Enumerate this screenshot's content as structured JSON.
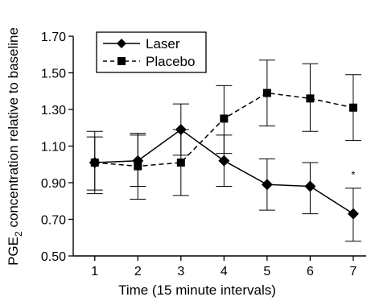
{
  "chart_data": {
    "type": "line",
    "xlabel": "Time (15 minute intervals)",
    "ylabel_prefix": "PGE",
    "ylabel_subscript": "2",
    "ylabel_suffix": " concentration relative to baseline",
    "x": [
      1,
      2,
      3,
      4,
      5,
      6,
      7
    ],
    "xtick_labels": [
      "1",
      "2",
      "3",
      "4",
      "5",
      "6",
      "7"
    ],
    "ytick_labels": [
      "0.50",
      "0.70",
      "0.90",
      "1.10",
      "1.30",
      "1.50",
      "1.70"
    ],
    "yticks": [
      0.5,
      0.7,
      0.9,
      1.1,
      1.3,
      1.5,
      1.7
    ],
    "ylim": [
      0.5,
      1.7
    ],
    "xlim": [
      0.5,
      7.3
    ],
    "legend_position": "top-left",
    "series": [
      {
        "name": "Laser",
        "marker": "diamond",
        "line_style": "solid",
        "values": [
          1.01,
          1.02,
          1.19,
          1.02,
          0.89,
          0.88,
          0.73
        ],
        "err_upper": [
          1.18,
          1.16,
          1.33,
          1.16,
          1.03,
          1.01,
          0.87
        ],
        "err_lower": [
          0.86,
          0.88,
          1.05,
          0.88,
          0.75,
          0.73,
          0.58
        ]
      },
      {
        "name": "Placebo",
        "marker": "square",
        "line_style": "dashed",
        "values": [
          1.01,
          0.99,
          1.01,
          1.25,
          1.39,
          1.36,
          1.31
        ],
        "err_upper": [
          1.15,
          1.17,
          1.19,
          1.43,
          1.57,
          1.55,
          1.49
        ],
        "err_lower": [
          0.84,
          0.81,
          0.83,
          1.06,
          1.21,
          1.18,
          1.13
        ]
      }
    ],
    "annotations": [
      {
        "text": "*",
        "x": 7,
        "y": 0.925
      }
    ]
  }
}
